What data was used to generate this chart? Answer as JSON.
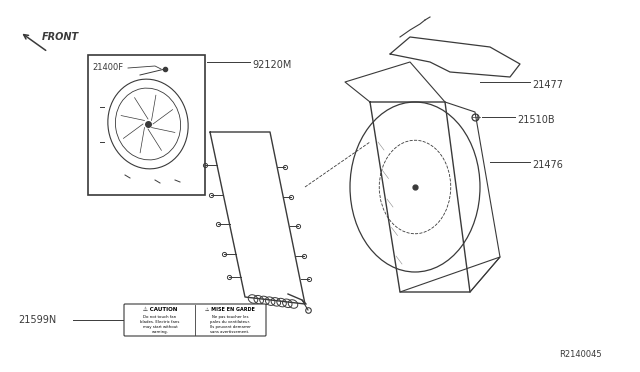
{
  "bg_color": "#ffffff",
  "line_color": "#3a3a3a",
  "title_ref": "R2140045",
  "part_label_ref": "21599N",
  "front_label": "FRONT",
  "label_21400F": "21400F",
  "label_92120M": "92120M",
  "label_21510B": "21510B",
  "label_21476": "21476",
  "label_21477": "21477"
}
